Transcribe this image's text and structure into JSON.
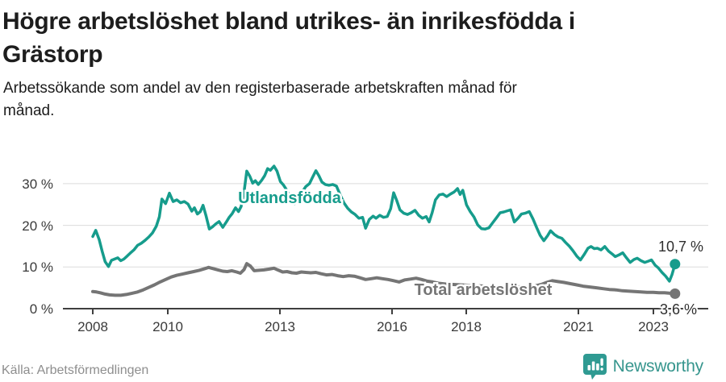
{
  "header": {
    "title_lines": [
      "Högre arbetslöshet bland utrikes- än inrikesfödda i",
      "Grästorp"
    ],
    "subtitle_lines": [
      "Arbetssökande som andel av den registerbaserade arbetskraften månad för",
      "månad."
    ]
  },
  "footer": {
    "source": "Källa: Arbetsförmedlingen",
    "brand": "Newsworthy",
    "brand_logo_icon": "newsworthy-speech-bubble-bar-chart-icon"
  },
  "colors": {
    "accent_teal": "#169c8c",
    "line_gray": "#757575",
    "gridline": "#dcdcdc",
    "axis": "#3f3f3f",
    "brand_teal": "#2f9a92"
  },
  "chart_data": {
    "type": "line",
    "unit": "%",
    "x_range": [
      2008,
      2023.75
    ],
    "y_range": [
      0,
      35
    ],
    "grid": "horizontal-only",
    "legend_position": "labels-on-lines",
    "y_tick_labels": [
      "0 %",
      "10 %",
      "20 %",
      "30 %"
    ],
    "y_tick_values": [
      0,
      10,
      20,
      30
    ],
    "x_tick_labels": [
      "2008",
      "2010",
      "2013",
      "2016",
      "2018",
      "2021",
      "2023"
    ],
    "x_tick_values": [
      2008,
      2010,
      2013,
      2016,
      2018,
      2021,
      2023
    ],
    "series": [
      {
        "name": "Utlandsfödda",
        "color": "#169c8c",
        "end_label": "10,7 %",
        "end_value": 10.7,
        "points": [
          [
            2008.0,
            17.3
          ],
          [
            2008.08,
            18.8
          ],
          [
            2008.17,
            16.6
          ],
          [
            2008.25,
            13.8
          ],
          [
            2008.33,
            11.3
          ],
          [
            2008.42,
            10.1
          ],
          [
            2008.5,
            11.6
          ],
          [
            2008.58,
            11.9
          ],
          [
            2008.67,
            12.2
          ],
          [
            2008.75,
            11.5
          ],
          [
            2008.83,
            11.9
          ],
          [
            2008.92,
            12.6
          ],
          [
            2009.0,
            13.3
          ],
          [
            2009.1,
            14.1
          ],
          [
            2009.2,
            15.2
          ],
          [
            2009.3,
            15.7
          ],
          [
            2009.4,
            16.4
          ],
          [
            2009.5,
            17.2
          ],
          [
            2009.6,
            18.2
          ],
          [
            2009.7,
            19.8
          ],
          [
            2009.78,
            22.0
          ],
          [
            2009.85,
            26.3
          ],
          [
            2009.95,
            25.2
          ],
          [
            2010.05,
            27.7
          ],
          [
            2010.15,
            25.7
          ],
          [
            2010.25,
            26.1
          ],
          [
            2010.35,
            25.4
          ],
          [
            2010.45,
            25.7
          ],
          [
            2010.55,
            25.1
          ],
          [
            2010.65,
            23.4
          ],
          [
            2010.72,
            24.2
          ],
          [
            2010.8,
            22.7
          ],
          [
            2010.88,
            23.3
          ],
          [
            2010.95,
            24.8
          ],
          [
            2011.03,
            22.3
          ],
          [
            2011.12,
            19.1
          ],
          [
            2011.2,
            19.6
          ],
          [
            2011.3,
            20.4
          ],
          [
            2011.38,
            20.9
          ],
          [
            2011.48,
            19.5
          ],
          [
            2011.58,
            20.9
          ],
          [
            2011.65,
            21.9
          ],
          [
            2011.73,
            22.8
          ],
          [
            2011.82,
            24.2
          ],
          [
            2011.9,
            23.3
          ],
          [
            2011.97,
            24.5
          ],
          [
            2012.05,
            28.1
          ],
          [
            2012.12,
            33.0
          ],
          [
            2012.2,
            31.8
          ],
          [
            2012.28,
            30.1
          ],
          [
            2012.35,
            30.7
          ],
          [
            2012.43,
            29.8
          ],
          [
            2012.52,
            30.8
          ],
          [
            2012.6,
            31.9
          ],
          [
            2012.68,
            33.6
          ],
          [
            2012.75,
            33.2
          ],
          [
            2012.85,
            34.2
          ],
          [
            2012.93,
            33.0
          ],
          [
            2013.02,
            30.5
          ],
          [
            2013.1,
            29.7
          ],
          [
            2013.2,
            28.3
          ],
          [
            2013.3,
            26.6
          ],
          [
            2013.4,
            25.2
          ],
          [
            2013.5,
            26.9
          ],
          [
            2013.6,
            28.0
          ],
          [
            2013.7,
            29.3
          ],
          [
            2013.8,
            30.0
          ],
          [
            2013.88,
            31.5
          ],
          [
            2013.97,
            33.1
          ],
          [
            2014.05,
            31.9
          ],
          [
            2014.13,
            30.4
          ],
          [
            2014.22,
            29.8
          ],
          [
            2014.32,
            29.6
          ],
          [
            2014.42,
            29.8
          ],
          [
            2014.52,
            29.4
          ],
          [
            2014.62,
            27.3
          ],
          [
            2014.72,
            25.4
          ],
          [
            2014.82,
            24.1
          ],
          [
            2014.92,
            23.2
          ],
          [
            2015.02,
            22.6
          ],
          [
            2015.12,
            21.7
          ],
          [
            2015.22,
            21.9
          ],
          [
            2015.3,
            19.3
          ],
          [
            2015.4,
            21.4
          ],
          [
            2015.5,
            22.2
          ],
          [
            2015.58,
            21.7
          ],
          [
            2015.68,
            22.4
          ],
          [
            2015.78,
            21.9
          ],
          [
            2015.88,
            22.1
          ],
          [
            2015.97,
            24.0
          ],
          [
            2016.05,
            27.8
          ],
          [
            2016.13,
            26.0
          ],
          [
            2016.22,
            23.7
          ],
          [
            2016.32,
            22.9
          ],
          [
            2016.42,
            22.6
          ],
          [
            2016.52,
            23.0
          ],
          [
            2016.62,
            23.6
          ],
          [
            2016.72,
            22.4
          ],
          [
            2016.82,
            21.7
          ],
          [
            2016.92,
            22.1
          ],
          [
            2017.0,
            20.8
          ],
          [
            2017.08,
            23.0
          ],
          [
            2017.17,
            26.1
          ],
          [
            2017.27,
            27.3
          ],
          [
            2017.37,
            27.5
          ],
          [
            2017.47,
            26.9
          ],
          [
            2017.57,
            27.5
          ],
          [
            2017.67,
            28.0
          ],
          [
            2017.76,
            28.8
          ],
          [
            2017.83,
            27.4
          ],
          [
            2017.9,
            28.4
          ],
          [
            2018.0,
            24.9
          ],
          [
            2018.1,
            23.3
          ],
          [
            2018.2,
            22.0
          ],
          [
            2018.3,
            20.1
          ],
          [
            2018.4,
            19.2
          ],
          [
            2018.5,
            19.1
          ],
          [
            2018.6,
            19.4
          ],
          [
            2018.7,
            20.6
          ],
          [
            2018.8,
            21.8
          ],
          [
            2018.9,
            23.0
          ],
          [
            2019.0,
            23.2
          ],
          [
            2019.1,
            23.5
          ],
          [
            2019.18,
            23.7
          ],
          [
            2019.28,
            20.8
          ],
          [
            2019.38,
            21.7
          ],
          [
            2019.47,
            22.7
          ],
          [
            2019.57,
            22.9
          ],
          [
            2019.68,
            23.3
          ],
          [
            2019.78,
            21.5
          ],
          [
            2019.88,
            19.4
          ],
          [
            2019.97,
            17.6
          ],
          [
            2020.07,
            16.3
          ],
          [
            2020.17,
            17.5
          ],
          [
            2020.25,
            18.7
          ],
          [
            2020.35,
            17.8
          ],
          [
            2020.45,
            17.2
          ],
          [
            2020.55,
            16.9
          ],
          [
            2020.65,
            15.9
          ],
          [
            2020.75,
            15.0
          ],
          [
            2020.85,
            13.9
          ],
          [
            2020.95,
            12.6
          ],
          [
            2021.05,
            11.7
          ],
          [
            2021.15,
            13.0
          ],
          [
            2021.25,
            14.5
          ],
          [
            2021.33,
            14.9
          ],
          [
            2021.42,
            14.4
          ],
          [
            2021.5,
            14.5
          ],
          [
            2021.6,
            14.1
          ],
          [
            2021.7,
            14.9
          ],
          [
            2021.8,
            13.8
          ],
          [
            2021.9,
            13.1
          ],
          [
            2021.98,
            12.5
          ],
          [
            2022.08,
            12.9
          ],
          [
            2022.18,
            13.4
          ],
          [
            2022.28,
            12.2
          ],
          [
            2022.38,
            11.1
          ],
          [
            2022.48,
            11.8
          ],
          [
            2022.57,
            12.1
          ],
          [
            2022.67,
            11.5
          ],
          [
            2022.77,
            11.1
          ],
          [
            2022.87,
            11.4
          ],
          [
            2022.95,
            11.7
          ],
          [
            2023.05,
            10.4
          ],
          [
            2023.13,
            9.8
          ],
          [
            2023.23,
            8.7
          ],
          [
            2023.33,
            7.8
          ],
          [
            2023.43,
            6.6
          ],
          [
            2023.5,
            8.2
          ],
          [
            2023.58,
            10.7
          ]
        ]
      },
      {
        "name": "Total arbetslöshet",
        "color": "#757575",
        "end_label": "3,6 %",
        "end_value": 3.6,
        "points": [
          [
            2008.0,
            4.1
          ],
          [
            2008.1,
            4.0
          ],
          [
            2008.2,
            3.8
          ],
          [
            2008.33,
            3.5
          ],
          [
            2008.45,
            3.3
          ],
          [
            2008.6,
            3.2
          ],
          [
            2008.75,
            3.2
          ],
          [
            2008.9,
            3.4
          ],
          [
            2009.05,
            3.7
          ],
          [
            2009.2,
            4.0
          ],
          [
            2009.35,
            4.5
          ],
          [
            2009.5,
            5.1
          ],
          [
            2009.65,
            5.7
          ],
          [
            2009.8,
            6.4
          ],
          [
            2009.95,
            7.0
          ],
          [
            2010.1,
            7.6
          ],
          [
            2010.25,
            8.0
          ],
          [
            2010.4,
            8.3
          ],
          [
            2010.55,
            8.6
          ],
          [
            2010.7,
            8.9
          ],
          [
            2010.85,
            9.2
          ],
          [
            2011.0,
            9.6
          ],
          [
            2011.1,
            9.9
          ],
          [
            2011.22,
            9.6
          ],
          [
            2011.35,
            9.3
          ],
          [
            2011.48,
            9.0
          ],
          [
            2011.6,
            8.9
          ],
          [
            2011.72,
            9.1
          ],
          [
            2011.85,
            8.8
          ],
          [
            2011.95,
            8.5
          ],
          [
            2012.05,
            9.4
          ],
          [
            2012.12,
            10.8
          ],
          [
            2012.22,
            10.2
          ],
          [
            2012.32,
            9.1
          ],
          [
            2012.45,
            9.2
          ],
          [
            2012.58,
            9.3
          ],
          [
            2012.72,
            9.5
          ],
          [
            2012.85,
            9.7
          ],
          [
            2012.95,
            9.3
          ],
          [
            2013.08,
            8.8
          ],
          [
            2013.2,
            8.9
          ],
          [
            2013.33,
            8.6
          ],
          [
            2013.45,
            8.5
          ],
          [
            2013.58,
            8.8
          ],
          [
            2013.7,
            8.7
          ],
          [
            2013.83,
            8.6
          ],
          [
            2013.97,
            8.7
          ],
          [
            2014.1,
            8.4
          ],
          [
            2014.25,
            8.1
          ],
          [
            2014.4,
            8.2
          ],
          [
            2014.55,
            7.9
          ],
          [
            2014.7,
            7.7
          ],
          [
            2014.85,
            7.9
          ],
          [
            2015.0,
            7.8
          ],
          [
            2015.15,
            7.4
          ],
          [
            2015.3,
            7.0
          ],
          [
            2015.45,
            7.2
          ],
          [
            2015.6,
            7.4
          ],
          [
            2015.75,
            7.2
          ],
          [
            2015.9,
            7.0
          ],
          [
            2016.05,
            6.7
          ],
          [
            2016.2,
            6.4
          ],
          [
            2016.35,
            6.9
          ],
          [
            2016.5,
            7.1
          ],
          [
            2016.65,
            7.3
          ],
          [
            2016.8,
            7.0
          ],
          [
            2016.95,
            6.6
          ],
          [
            2017.1,
            6.4
          ],
          [
            2017.25,
            6.1
          ],
          [
            2017.45,
            5.9
          ],
          [
            2017.65,
            5.8
          ],
          [
            2017.85,
            5.7
          ],
          [
            2018.05,
            5.6
          ],
          [
            2018.3,
            5.5
          ],
          [
            2018.55,
            5.4
          ],
          [
            2018.8,
            5.3
          ],
          [
            2019.05,
            5.3
          ],
          [
            2019.3,
            5.2
          ],
          [
            2019.55,
            5.3
          ],
          [
            2019.8,
            5.4
          ],
          [
            2020.0,
            5.8
          ],
          [
            2020.15,
            6.3
          ],
          [
            2020.3,
            6.7
          ],
          [
            2020.45,
            6.5
          ],
          [
            2020.6,
            6.3
          ],
          [
            2020.78,
            6.0
          ],
          [
            2020.95,
            5.7
          ],
          [
            2021.12,
            5.4
          ],
          [
            2021.3,
            5.2
          ],
          [
            2021.48,
            5.0
          ],
          [
            2021.65,
            4.8
          ],
          [
            2021.82,
            4.6
          ],
          [
            2022.0,
            4.5
          ],
          [
            2022.17,
            4.3
          ],
          [
            2022.33,
            4.2
          ],
          [
            2022.5,
            4.1
          ],
          [
            2022.67,
            4.0
          ],
          [
            2022.83,
            3.9
          ],
          [
            2023.0,
            3.9
          ],
          [
            2023.15,
            3.8
          ],
          [
            2023.3,
            3.8
          ],
          [
            2023.45,
            3.7
          ],
          [
            2023.58,
            3.6
          ]
        ]
      }
    ]
  }
}
